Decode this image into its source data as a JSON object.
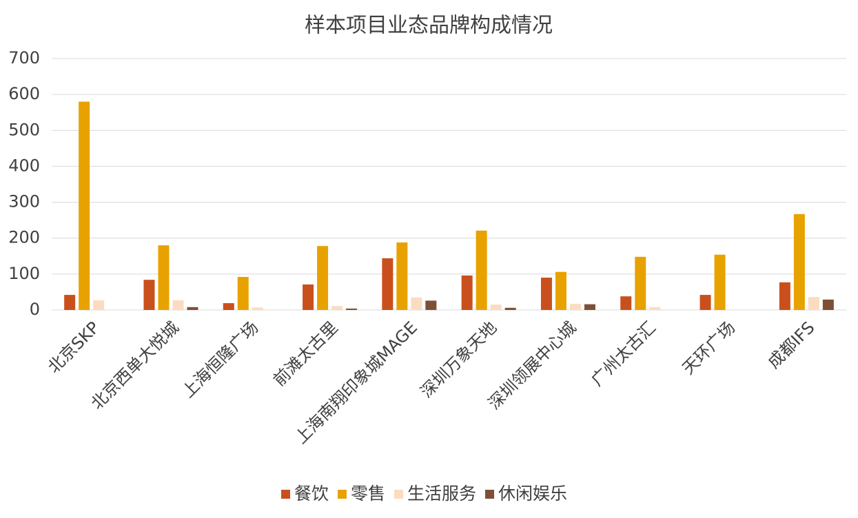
{
  "chart_data": {
    "type": "bar",
    "title": "样本项目业态品牌构成情况",
    "categories": [
      "北京SKP",
      "北京西单大悦城",
      "上海恒隆广场",
      "前滩太古里",
      "上海南翔印象城MAGE",
      "深圳万象天地",
      "深圳领展中心城",
      "广州太古汇",
      "天环广场",
      "成都IFS"
    ],
    "series": [
      {
        "name": "餐饮",
        "color": "#c9501c",
        "values": [
          42,
          84,
          19,
          71,
          144,
          96,
          90,
          38,
          42,
          77
        ]
      },
      {
        "name": "零售",
        "color": "#e8a200",
        "values": [
          580,
          180,
          92,
          178,
          188,
          221,
          106,
          148,
          154,
          267
        ]
      },
      {
        "name": "生活服务",
        "color": "#fbdcc0",
        "values": [
          27,
          27,
          7,
          11,
          35,
          15,
          17,
          8,
          0,
          36
        ]
      },
      {
        "name": "休闲娱乐",
        "color": "#7e4f36",
        "values": [
          0,
          8,
          0,
          4,
          26,
          6,
          16,
          0,
          0,
          29
        ]
      }
    ],
    "ylim": [
      0,
      700
    ],
    "yticks": [
      0,
      100,
      200,
      300,
      400,
      500,
      600,
      700
    ],
    "grid": true,
    "legend": "bottom"
  }
}
